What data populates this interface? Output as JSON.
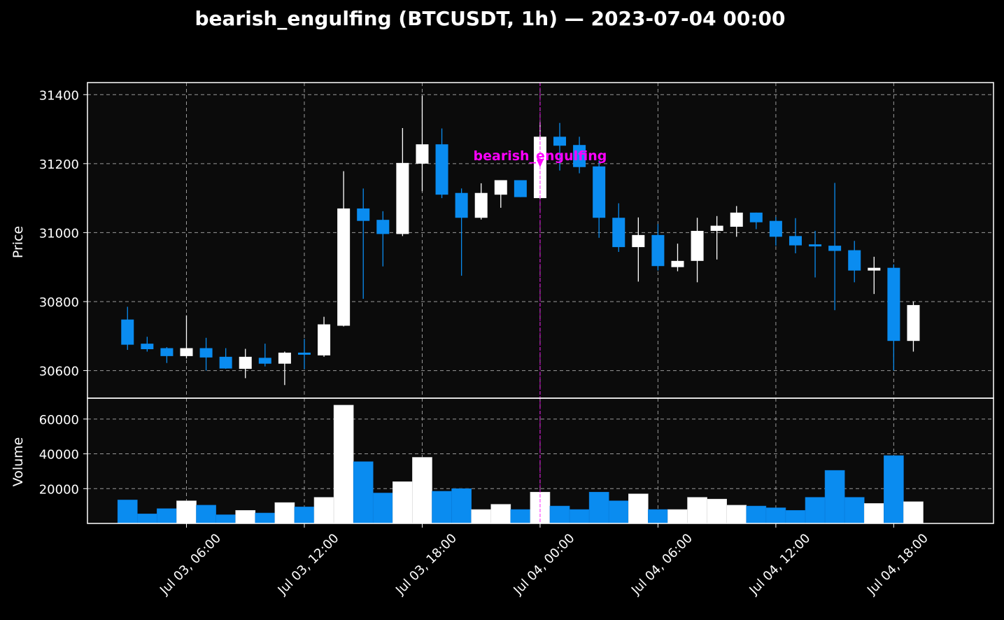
{
  "chart_data": {
    "type": "candlestick",
    "title": "bearish_engulfing (BTCUSDT, 1h) — 2023-07-04 00:00",
    "price_panel": {
      "ylabel": "Price",
      "yticks": [
        30600,
        30800,
        31000,
        31200,
        31400
      ],
      "ylim": [
        30520,
        31435
      ]
    },
    "volume_panel": {
      "ylabel": "Volume",
      "yticks": [
        20000,
        40000,
        60000
      ],
      "ylim": [
        0,
        72000
      ]
    },
    "xticks": [
      {
        "hour": 6,
        "label": "Jul 03, 06:00"
      },
      {
        "hour": 12,
        "label": "Jul 03, 12:00"
      },
      {
        "hour": 18,
        "label": "Jul 03, 18:00"
      },
      {
        "hour": 24,
        "label": "Jul 04, 00:00"
      },
      {
        "hour": 30,
        "label": "Jul 04, 06:00"
      },
      {
        "hour": 36,
        "label": "Jul 04, 12:00"
      },
      {
        "hour": 42,
        "label": "Jul 04, 18:00"
      }
    ],
    "x_unit": "hours since Jul 03, 00:00",
    "grid": true,
    "up_color": "#ffffff",
    "down_color": "#0a8cf0",
    "annotation": {
      "hour": 24,
      "label": "bearish_engulfing",
      "color": "#ff00ff"
    },
    "candles": [
      {
        "t": 3,
        "o": 30748,
        "h": 30785,
        "l": 30660,
        "c": 30675,
        "v": 13500
      },
      {
        "t": 4,
        "o": 30678,
        "h": 30698,
        "l": 30655,
        "c": 30662,
        "v": 5500
      },
      {
        "t": 5,
        "o": 30665,
        "h": 30668,
        "l": 30622,
        "c": 30642,
        "v": 8500
      },
      {
        "t": 6,
        "o": 30642,
        "h": 30760,
        "l": 30635,
        "c": 30665,
        "v": 13000
      },
      {
        "t": 7,
        "o": 30665,
        "h": 30695,
        "l": 30600,
        "c": 30638,
        "v": 10500
      },
      {
        "t": 8,
        "o": 30640,
        "h": 30665,
        "l": 30605,
        "c": 30606,
        "v": 5000
      },
      {
        "t": 9,
        "o": 30605,
        "h": 30663,
        "l": 30578,
        "c": 30640,
        "v": 7500
      },
      {
        "t": 10,
        "o": 30637,
        "h": 30678,
        "l": 30612,
        "c": 30620,
        "v": 6000
      },
      {
        "t": 11,
        "o": 30620,
        "h": 30655,
        "l": 30558,
        "c": 30652,
        "v": 12000
      },
      {
        "t": 12,
        "o": 30652,
        "h": 30692,
        "l": 30604,
        "c": 30646,
        "v": 9500
      },
      {
        "t": 13,
        "o": 30644,
        "h": 30756,
        "l": 30640,
        "c": 30734,
        "v": 15000
      },
      {
        "t": 14,
        "o": 30730,
        "h": 31178,
        "l": 30728,
        "c": 31070,
        "v": 68000
      },
      {
        "t": 15,
        "o": 31070,
        "h": 31128,
        "l": 30808,
        "c": 31034,
        "v": 35500
      },
      {
        "t": 16,
        "o": 31037,
        "h": 31062,
        "l": 30902,
        "c": 30996,
        "v": 17500
      },
      {
        "t": 17,
        "o": 30996,
        "h": 31303,
        "l": 30990,
        "c": 31202,
        "v": 24000
      },
      {
        "t": 18,
        "o": 31200,
        "h": 31397,
        "l": 31120,
        "c": 31256,
        "v": 38000
      },
      {
        "t": 19,
        "o": 31256,
        "h": 31302,
        "l": 31100,
        "c": 31110,
        "v": 18500
      },
      {
        "t": 20,
        "o": 31115,
        "h": 31128,
        "l": 30875,
        "c": 31043,
        "v": 20000
      },
      {
        "t": 21,
        "o": 31043,
        "h": 31143,
        "l": 31038,
        "c": 31115,
        "v": 8000
      },
      {
        "t": 22,
        "o": 31110,
        "h": 31152,
        "l": 31072,
        "c": 31152,
        "v": 11000
      },
      {
        "t": 23,
        "o": 31152,
        "h": 31152,
        "l": 31103,
        "c": 31103,
        "v": 8000
      },
      {
        "t": 24,
        "o": 31100,
        "h": 31320,
        "l": 31097,
        "c": 31278,
        "v": 18000
      },
      {
        "t": 25,
        "o": 31278,
        "h": 31318,
        "l": 31180,
        "c": 31252,
        "v": 10000
      },
      {
        "t": 26,
        "o": 31254,
        "h": 31278,
        "l": 31172,
        "c": 31190,
        "v": 8000
      },
      {
        "t": 27,
        "o": 31192,
        "h": 31210,
        "l": 30985,
        "c": 31043,
        "v": 18000
      },
      {
        "t": 28,
        "o": 31043,
        "h": 31085,
        "l": 30944,
        "c": 30958,
        "v": 13000
      },
      {
        "t": 29,
        "o": 30958,
        "h": 31044,
        "l": 30858,
        "c": 30993,
        "v": 17000
      },
      {
        "t": 30,
        "o": 30993,
        "h": 31025,
        "l": 30890,
        "c": 30903,
        "v": 8000
      },
      {
        "t": 31,
        "o": 30900,
        "h": 30968,
        "l": 30888,
        "c": 30918,
        "v": 8000
      },
      {
        "t": 32,
        "o": 30918,
        "h": 31043,
        "l": 30856,
        "c": 31005,
        "v": 15000
      },
      {
        "t": 33,
        "o": 31005,
        "h": 31048,
        "l": 30922,
        "c": 31020,
        "v": 14000
      },
      {
        "t": 34,
        "o": 31017,
        "h": 31077,
        "l": 30988,
        "c": 31058,
        "v": 10500
      },
      {
        "t": 35,
        "o": 31058,
        "h": 31058,
        "l": 31010,
        "c": 31030,
        "v": 10000
      },
      {
        "t": 36,
        "o": 31034,
        "h": 31045,
        "l": 30962,
        "c": 30988,
        "v": 9000
      },
      {
        "t": 37,
        "o": 30990,
        "h": 31042,
        "l": 30940,
        "c": 30963,
        "v": 7500
      },
      {
        "t": 38,
        "o": 30966,
        "h": 31005,
        "l": 30870,
        "c": 30960,
        "v": 15000
      },
      {
        "t": 39,
        "o": 30962,
        "h": 31144,
        "l": 30775,
        "c": 30947,
        "v": 30500
      },
      {
        "t": 40,
        "o": 30949,
        "h": 30976,
        "l": 30856,
        "c": 30890,
        "v": 15000
      },
      {
        "t": 41,
        "o": 30890,
        "h": 30930,
        "l": 30822,
        "c": 30898,
        "v": 11500
      },
      {
        "t": 42,
        "o": 30898,
        "h": 30908,
        "l": 30600,
        "c": 30686,
        "v": 39000
      },
      {
        "t": 43,
        "o": 30686,
        "h": 30800,
        "l": 30655,
        "c": 30790,
        "v": 12500
      }
    ]
  }
}
